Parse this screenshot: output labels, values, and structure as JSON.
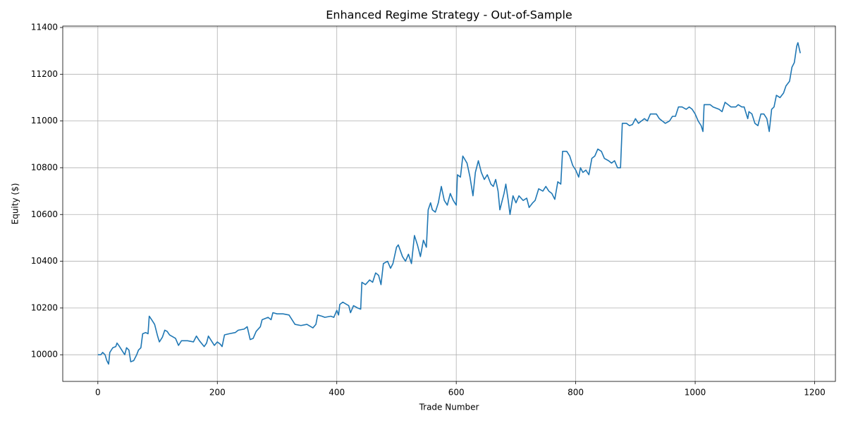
{
  "chart_data": {
    "type": "line",
    "title": "Enhanced Regime Strategy - Out-of-Sample",
    "x_label": "Trade Number",
    "y_label": "Equity ($)",
    "xlim": [
      -58.8,
      1234.8
    ],
    "ylim": [
      9886,
      11406
    ],
    "xticks": [
      0,
      200,
      400,
      600,
      800,
      1000,
      1200
    ],
    "yticks": [
      10000,
      10200,
      10400,
      10600,
      10800,
      11000,
      11200,
      11400
    ],
    "grid": true,
    "x": [
      0,
      5,
      8,
      12,
      15,
      18,
      20,
      25,
      30,
      32,
      35,
      40,
      45,
      48,
      52,
      55,
      60,
      65,
      68,
      72,
      75,
      80,
      84,
      86,
      90,
      95,
      100,
      103,
      108,
      112,
      116,
      120,
      130,
      135,
      140,
      150,
      160,
      165,
      170,
      178,
      182,
      185,
      190,
      195,
      200,
      205,
      208,
      212,
      220,
      230,
      235,
      245,
      250,
      255,
      260,
      265,
      272,
      275,
      285,
      290,
      293,
      300,
      310,
      320,
      330,
      340,
      350,
      360,
      365,
      368,
      375,
      380,
      390,
      395,
      400,
      403,
      405,
      410,
      420,
      423,
      428,
      435,
      440,
      442,
      448,
      455,
      460,
      465,
      470,
      474,
      478,
      485,
      490,
      494,
      500,
      503,
      510,
      515,
      520,
      525,
      530,
      535,
      540,
      545,
      550,
      553,
      557,
      560,
      565,
      570,
      575,
      580,
      585,
      590,
      595,
      600,
      602,
      607,
      611,
      618,
      623,
      628,
      632,
      637,
      642,
      647,
      652,
      658,
      662,
      666,
      670,
      673,
      677,
      680,
      683,
      687,
      690,
      695,
      700,
      705,
      712,
      718,
      722,
      728,
      732,
      738,
      745,
      750,
      755,
      760,
      765,
      770,
      775,
      778,
      785,
      790,
      795,
      800,
      805,
      808,
      812,
      817,
      822,
      827,
      832,
      837,
      843,
      848,
      855,
      860,
      865,
      870,
      875,
      878,
      885,
      890,
      895,
      900,
      905,
      910,
      915,
      920,
      925,
      935,
      940,
      945,
      950,
      957,
      962,
      967,
      972,
      978,
      985,
      990,
      995,
      1000,
      1005,
      1010,
      1013,
      1015,
      1025,
      1030,
      1040,
      1045,
      1050,
      1055,
      1060,
      1068,
      1072,
      1078,
      1082,
      1088,
      1090,
      1095,
      1100,
      1105,
      1110,
      1115,
      1120,
      1124,
      1128,
      1132,
      1136,
      1142,
      1148,
      1152,
      1158,
      1162,
      1166,
      1170,
      1172,
      1176
    ],
    "series": [
      {
        "name": "Equity",
        "color": "#1f77b4",
        "values": [
          10000,
          10000,
          10010,
          10000,
          9975,
          9960,
          10010,
          10030,
          10035,
          10050,
          10040,
          10020,
          10000,
          10030,
          10020,
          9970,
          9975,
          10000,
          10020,
          10030,
          10090,
          10095,
          10090,
          10165,
          10150,
          10130,
          10080,
          10055,
          10075,
          10105,
          10100,
          10085,
          10070,
          10040,
          10060,
          10060,
          10055,
          10080,
          10060,
          10035,
          10050,
          10080,
          10060,
          10040,
          10055,
          10045,
          10035,
          10085,
          10090,
          10095,
          10105,
          10110,
          10120,
          10065,
          10070,
          10100,
          10120,
          10150,
          10160,
          10150,
          10180,
          10175,
          10175,
          10170,
          10130,
          10125,
          10130,
          10115,
          10130,
          10170,
          10165,
          10160,
          10165,
          10160,
          10190,
          10170,
          10215,
          10225,
          10210,
          10180,
          10210,
          10200,
          10195,
          10310,
          10300,
          10320,
          10310,
          10350,
          10340,
          10300,
          10390,
          10400,
          10370,
          10390,
          10460,
          10470,
          10420,
          10400,
          10430,
          10390,
          10510,
          10470,
          10420,
          10490,
          10460,
          10620,
          10650,
          10620,
          10610,
          10650,
          10720,
          10660,
          10640,
          10690,
          10660,
          10640,
          10770,
          10760,
          10850,
          10820,
          10760,
          10680,
          10780,
          10830,
          10780,
          10750,
          10770,
          10730,
          10720,
          10750,
          10700,
          10620,
          10660,
          10690,
          10730,
          10660,
          10600,
          10680,
          10650,
          10680,
          10660,
          10670,
          10630,
          10650,
          10660,
          10710,
          10700,
          10720,
          10700,
          10690,
          10665,
          10740,
          10730,
          10870,
          10870,
          10850,
          10810,
          10790,
          10760,
          10800,
          10780,
          10790,
          10770,
          10840,
          10850,
          10880,
          10870,
          10840,
          10830,
          10820,
          10830,
          10800,
          10800,
          10990,
          10990,
          10980,
          10985,
          11010,
          10990,
          11000,
          11010,
          11000,
          11030,
          11030,
          11010,
          11000,
          10990,
          11000,
          11020,
          11020,
          11060,
          11060,
          11050,
          11060,
          11050,
          11030,
          11000,
          10980,
          10955,
          11070,
          11070,
          11060,
          11050,
          11040,
          11080,
          11070,
          11060,
          11060,
          11070,
          11060,
          11060,
          11010,
          11040,
          11030,
          10990,
          10980,
          11030,
          11030,
          11010,
          10955,
          11050,
          11060,
          11110,
          11100,
          11120,
          11150,
          11170,
          11230,
          11250,
          11320,
          11335,
          11290
        ]
      }
    ]
  }
}
